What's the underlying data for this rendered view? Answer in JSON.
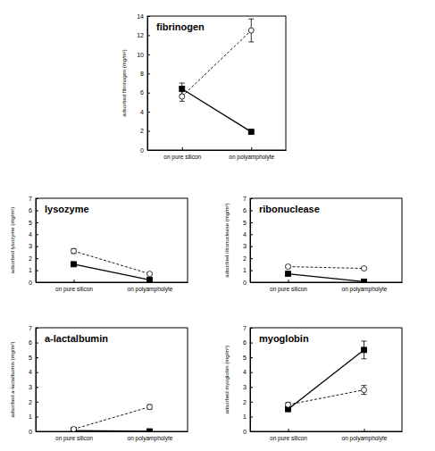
{
  "chart_data": [
    {
      "type": "line",
      "title": "fibrinogen",
      "y_label": "adsorbed fibrinogen (mg/m²)",
      "categories": [
        "on pure silicon",
        "on polyampholyte"
      ],
      "ylim": [
        0,
        14
      ],
      "yticks": [
        0,
        2,
        4,
        6,
        8,
        10,
        12,
        14
      ],
      "series": [
        {
          "color": "#000000",
          "marker": "square",
          "line_style": "solid",
          "values": [
            6.4,
            1.9
          ],
          "errors": [
            0.6,
            0.15
          ]
        },
        {
          "color": "#000000",
          "marker": "open-circle",
          "line_style": "dashed",
          "values": [
            5.6,
            12.5
          ],
          "errors": [
            0.5,
            1.2
          ]
        }
      ]
    },
    {
      "type": "line",
      "title": "lysozyme",
      "y_label": "adsorbed lysozyme (mg/m²)",
      "categories": [
        "on pure silicon",
        "on polyampholyte"
      ],
      "ylim": [
        0,
        7
      ],
      "yticks": [
        0,
        1,
        2,
        3,
        4,
        5,
        6,
        7
      ],
      "series": [
        {
          "color": "#000000",
          "marker": "square",
          "line_style": "solid",
          "values": [
            1.5,
            0.2
          ],
          "errors": [
            0.12,
            0.05
          ]
        },
        {
          "color": "#000000",
          "marker": "open-circle",
          "line_style": "dashed",
          "values": [
            2.6,
            0.7
          ],
          "errors": [
            0.2,
            0.1
          ]
        }
      ]
    },
    {
      "type": "line",
      "title": "ribonuclease",
      "y_label": "adsorbed ribonuclease (mg/m²)",
      "categories": [
        "on pure silicon",
        "on polyampholyte"
      ],
      "ylim": [
        0,
        7
      ],
      "yticks": [
        0,
        1,
        2,
        3,
        4,
        5,
        6,
        7
      ],
      "series": [
        {
          "color": "#000000",
          "marker": "square",
          "line_style": "solid",
          "values": [
            0.7,
            0.05
          ],
          "errors": [
            0.05,
            0.02
          ]
        },
        {
          "color": "#000000",
          "marker": "open-circle",
          "line_style": "dashed",
          "values": [
            1.3,
            1.15
          ],
          "errors": [
            0.1,
            0.08
          ]
        }
      ]
    },
    {
      "type": "line",
      "title": "a-lactalbumin",
      "y_label": "adsorbed a-lactalbumin (mg/m²)",
      "categories": [
        "on pure silicon",
        "on polyampholyte"
      ],
      "ylim": [
        0,
        7
      ],
      "yticks": [
        0,
        1,
        2,
        3,
        4,
        5,
        6,
        7
      ],
      "series": [
        {
          "color": "#000000",
          "marker": "square",
          "line_style": "solid",
          "values": [
            0.05,
            0.0
          ],
          "errors": [
            0.05,
            0.02
          ]
        },
        {
          "color": "#000000",
          "marker": "open-circle",
          "line_style": "dashed",
          "values": [
            0.15,
            1.65
          ],
          "errors": [
            0.12,
            0.15
          ]
        }
      ]
    },
    {
      "type": "line",
      "title": "myoglobin",
      "y_label": "adsorbed myoglobin (mg/m²)",
      "categories": [
        "on pure silicon",
        "on polyampholyte"
      ],
      "ylim": [
        0,
        7
      ],
      "yticks": [
        0,
        1,
        2,
        3,
        4,
        5,
        6,
        7
      ],
      "series": [
        {
          "color": "#000000",
          "marker": "square",
          "line_style": "solid",
          "values": [
            1.5,
            5.5
          ],
          "errors": [
            0.12,
            0.6
          ]
        },
        {
          "color": "#000000",
          "marker": "open-circle",
          "line_style": "dashed",
          "values": [
            1.8,
            2.8
          ],
          "errors": [
            0.15,
            0.3
          ]
        }
      ]
    }
  ]
}
